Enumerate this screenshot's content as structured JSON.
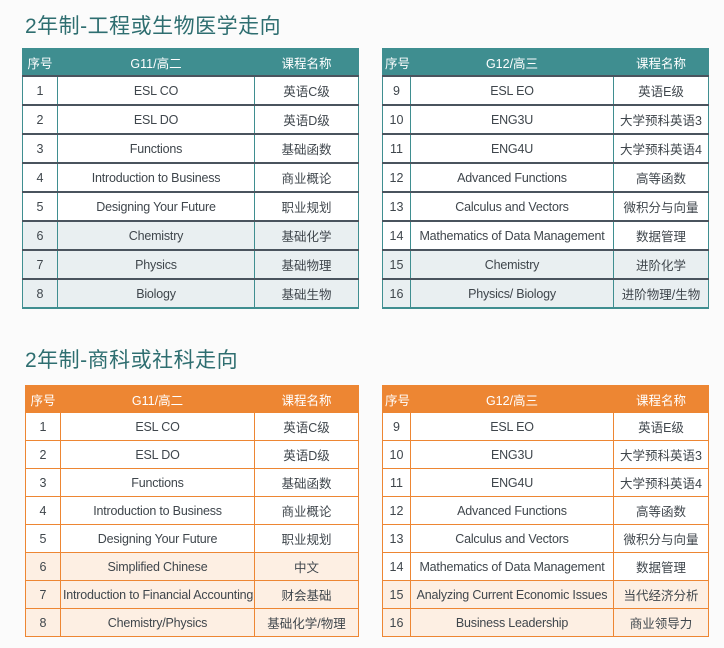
{
  "page": {
    "background": "#FBFBFB"
  },
  "theme_colors": {
    "teal_header_bg": "#3F8E90",
    "teal_row_divider": "#4A545E",
    "teal_highlight_bg": "#E9EFF1",
    "orange_header_bg": "#ED8633",
    "orange_highlight_bg": "#FDEFE3",
    "title_color": "#2E6E70",
    "cell_text_color": "#3F464C",
    "header_text_color": "#FFFFFF"
  },
  "sections": [
    {
      "title": "2年制-工程或生物医学走向",
      "theme": "teal",
      "tables": [
        {
          "headers": [
            "序号",
            "G11/高二",
            "课程名称"
          ],
          "rows": [
            {
              "no": "1",
              "course": "ESL CO",
              "name": "英语C级",
              "highlight": false
            },
            {
              "no": "2",
              "course": "ESL DO",
              "name": "英语D级",
              "highlight": false
            },
            {
              "no": "3",
              "course": "Functions",
              "name": "基础函数",
              "highlight": false
            },
            {
              "no": "4",
              "course": "Introduction to Business",
              "name": "商业概论",
              "highlight": false
            },
            {
              "no": "5",
              "course": "Designing Your Future",
              "name": "职业规划",
              "highlight": false
            },
            {
              "no": "6",
              "course": "Chemistry",
              "name": "基础化学",
              "highlight": true
            },
            {
              "no": "7",
              "course": "Physics",
              "name": "基础物理",
              "highlight": true
            },
            {
              "no": "8",
              "course": "Biology",
              "name": "基础生物",
              "highlight": true
            }
          ]
        },
        {
          "headers": [
            "序号",
            "G12/高三",
            "课程名称"
          ],
          "rows": [
            {
              "no": "9",
              "course": "ESL EO",
              "name": "英语E级",
              "highlight": false
            },
            {
              "no": "10",
              "course": "ENG3U",
              "name": "大学预科英语3",
              "highlight": false
            },
            {
              "no": "11",
              "course": "ENG4U",
              "name": "大学预科英语4",
              "highlight": false
            },
            {
              "no": "12",
              "course": "Advanced Functions",
              "name": "高等函数",
              "highlight": false
            },
            {
              "no": "13",
              "course": "Calculus and Vectors",
              "name": "微积分与向量",
              "highlight": false
            },
            {
              "no": "14",
              "course": "Mathematics of Data Management",
              "name": "数据管理",
              "highlight": false
            },
            {
              "no": "15",
              "course": "Chemistry",
              "name": "进阶化学",
              "highlight": true
            },
            {
              "no": "16",
              "course": "Physics/ Biology",
              "name": "进阶物理/生物",
              "highlight": true
            }
          ]
        }
      ]
    },
    {
      "title": "2年制-商科或社科走向",
      "theme": "orange",
      "tables": [
        {
          "headers": [
            "序号",
            "G11/高二",
            "课程名称"
          ],
          "rows": [
            {
              "no": "1",
              "course": "ESL CO",
              "name": "英语C级",
              "highlight": false
            },
            {
              "no": "2",
              "course": "ESL DO",
              "name": "英语D级",
              "highlight": false
            },
            {
              "no": "3",
              "course": "Functions",
              "name": "基础函数",
              "highlight": false
            },
            {
              "no": "4",
              "course": "Introduction to Business",
              "name": "商业概论",
              "highlight": false
            },
            {
              "no": "5",
              "course": "Designing Your Future",
              "name": "职业规划",
              "highlight": false
            },
            {
              "no": "6",
              "course": "Simplified Chinese",
              "name": "中文",
              "highlight": true
            },
            {
              "no": "7",
              "course": "Introduction to Financial Accounting",
              "name": "财会基础",
              "highlight": true
            },
            {
              "no": "8",
              "course": "Chemistry/Physics",
              "name": "基础化学/物理",
              "highlight": true
            }
          ]
        },
        {
          "headers": [
            "序号",
            "G12/高三",
            "课程名称"
          ],
          "rows": [
            {
              "no": "9",
              "course": "ESL EO",
              "name": "英语E级",
              "highlight": false
            },
            {
              "no": "10",
              "course": "ENG3U",
              "name": "大学预科英语3",
              "highlight": false
            },
            {
              "no": "11",
              "course": "ENG4U",
              "name": "大学预科英语4",
              "highlight": false
            },
            {
              "no": "12",
              "course": "Advanced Functions",
              "name": "高等函数",
              "highlight": false
            },
            {
              "no": "13",
              "course": "Calculus and Vectors",
              "name": "微积分与向量",
              "highlight": false
            },
            {
              "no": "14",
              "course": "Mathematics of Data Management",
              "name": "数据管理",
              "highlight": false
            },
            {
              "no": "15",
              "course": "Analyzing Current Economic Issues",
              "name": "当代经济分析",
              "highlight": true
            },
            {
              "no": "16",
              "course": "Business Leadership",
              "name": "商业领导力",
              "highlight": true
            }
          ]
        }
      ]
    }
  ]
}
